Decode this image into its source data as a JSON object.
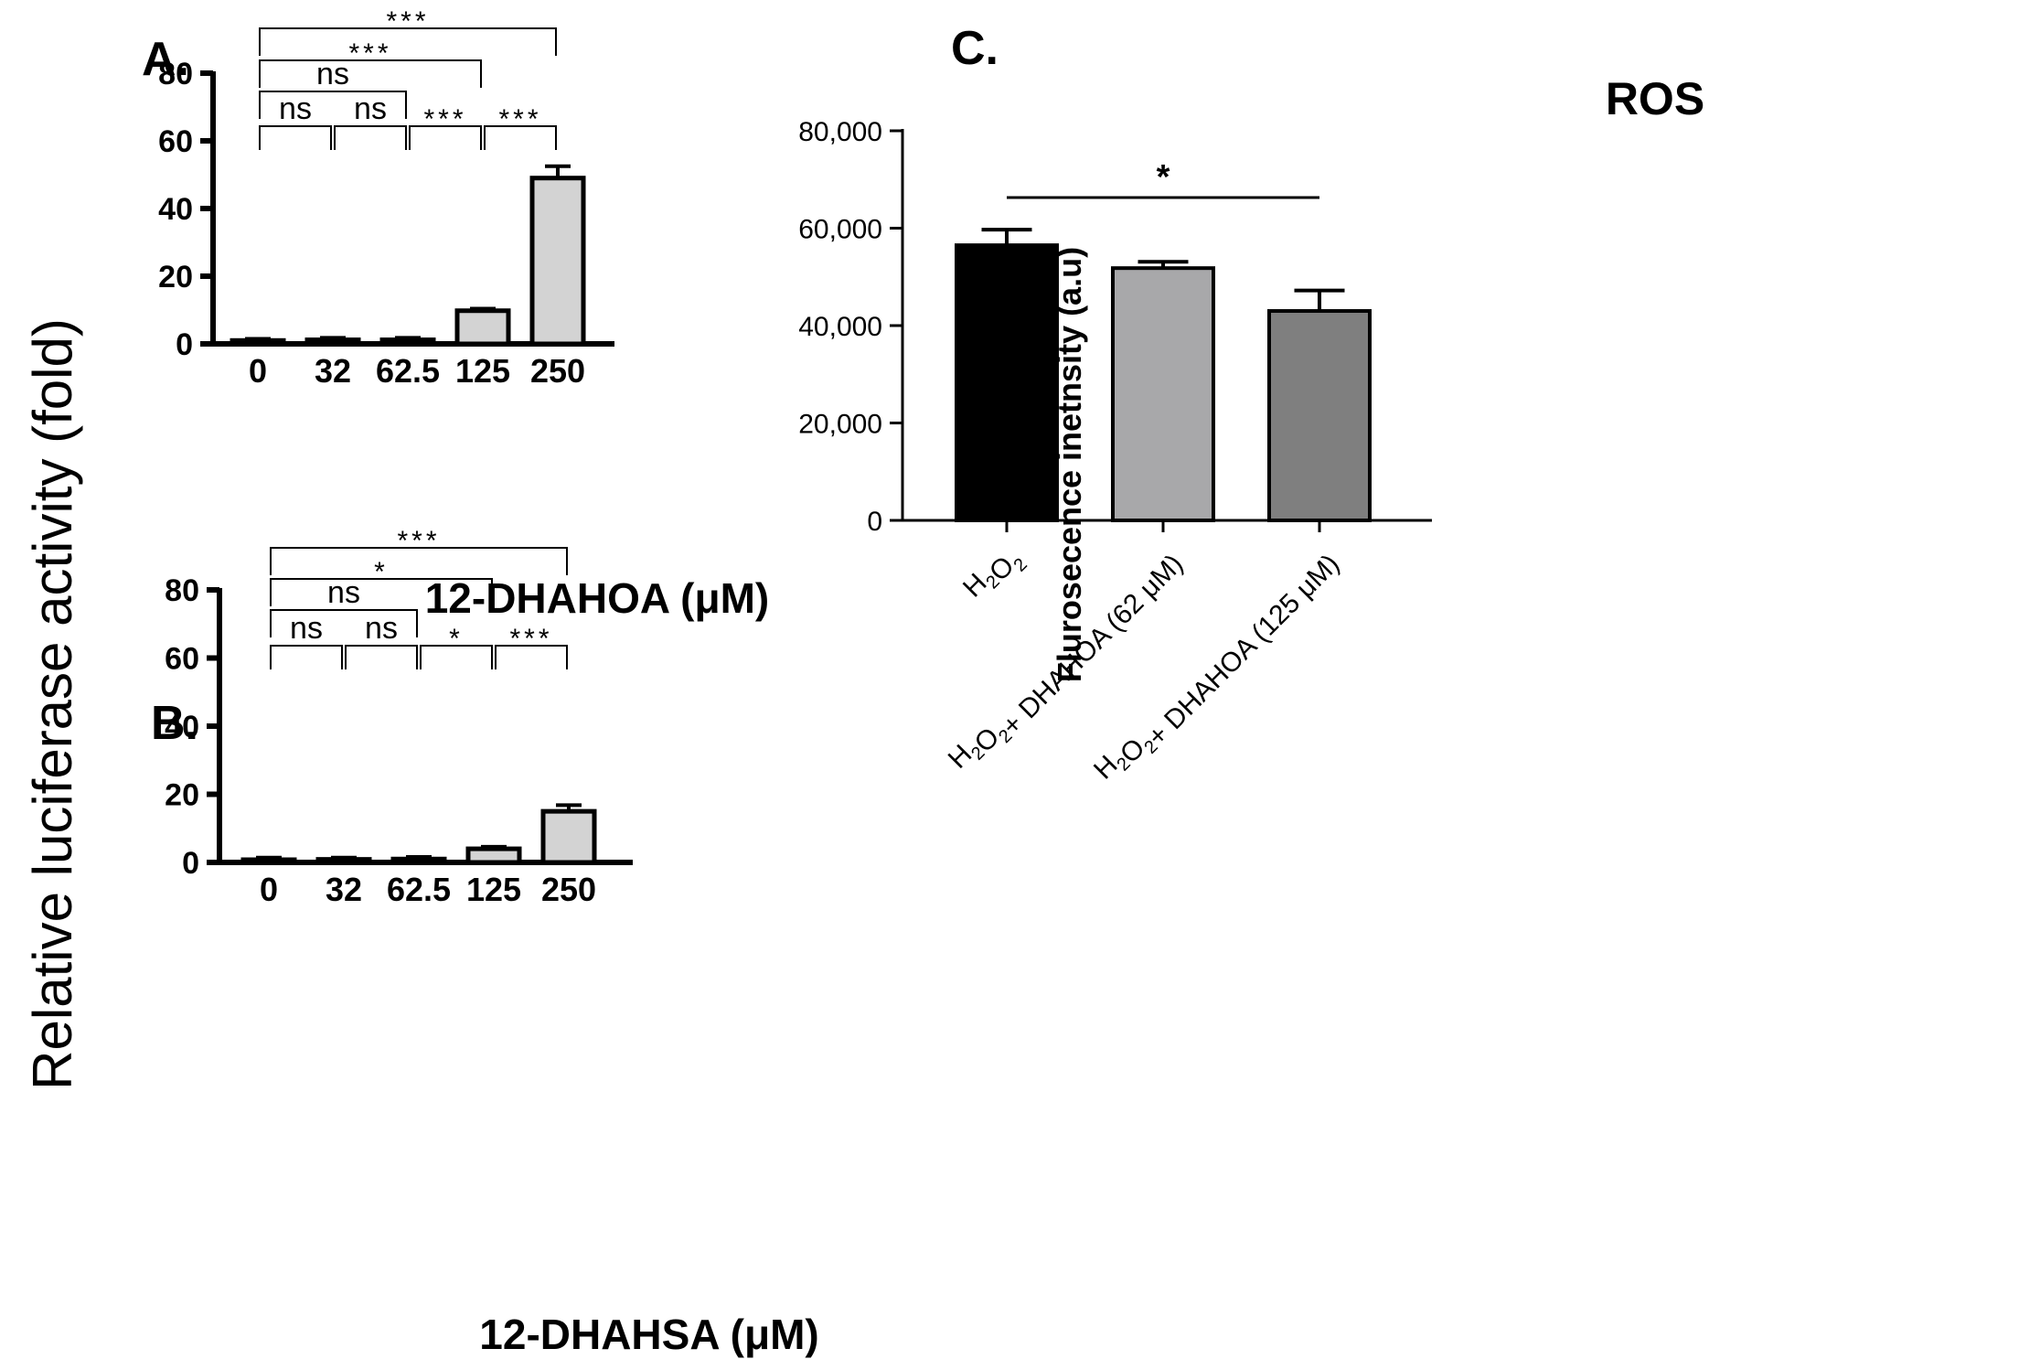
{
  "chart_data": [
    {
      "id": "A",
      "type": "bar",
      "panel_label": "A.",
      "xlabel": "12-DHAHOA (μM)",
      "ylabel": "Relative luciferase activity (fold)",
      "categories": [
        "0",
        "32",
        "62.5",
        "125",
        "250"
      ],
      "values": [
        1,
        1.2,
        1.2,
        9.8,
        49
      ],
      "errors": [
        0.5,
        0.6,
        0.6,
        0.6,
        3.5
      ],
      "ylim": [
        0,
        80
      ],
      "yticks": [
        "0",
        "20",
        "40",
        "60",
        "80"
      ],
      "bar_colors": [
        "#d3d3d3",
        "#d3d3d3",
        "#d3d3d3",
        "#d3d3d3",
        "#d3d3d3"
      ],
      "significance": [
        {
          "from": 0,
          "to": 1,
          "label": "ns"
        },
        {
          "from": 1,
          "to": 2,
          "label": "ns"
        },
        {
          "from": 2,
          "to": 3,
          "label": "***"
        },
        {
          "from": 3,
          "to": 4,
          "label": "***"
        },
        {
          "from": 0,
          "to": 2,
          "label": "ns"
        },
        {
          "from": 0,
          "to": 3,
          "label": "***"
        },
        {
          "from": 0,
          "to": 4,
          "label": "***"
        }
      ]
    },
    {
      "id": "B",
      "type": "bar",
      "panel_label": "B.",
      "xlabel": "12-DHAHSA (μM)",
      "ylabel": "Relative luciferase activity (fold)",
      "categories": [
        "0",
        "32",
        "62.5",
        "125",
        "250"
      ],
      "values": [
        0.8,
        0.9,
        1,
        4,
        15
      ],
      "errors": [
        0.6,
        0.5,
        0.6,
        0.6,
        1.8
      ],
      "ylim": [
        0,
        80
      ],
      "yticks": [
        "0",
        "20",
        "40",
        "60",
        "80"
      ],
      "bar_colors": [
        "#d3d3d3",
        "#d3d3d3",
        "#d3d3d3",
        "#d3d3d3",
        "#d3d3d3"
      ],
      "significance": [
        {
          "from": 0,
          "to": 1,
          "label": "ns"
        },
        {
          "from": 1,
          "to": 2,
          "label": "ns"
        },
        {
          "from": 2,
          "to": 3,
          "label": "*"
        },
        {
          "from": 3,
          "to": 4,
          "label": "***"
        },
        {
          "from": 0,
          "to": 2,
          "label": "ns"
        },
        {
          "from": 0,
          "to": 3,
          "label": "*"
        },
        {
          "from": 0,
          "to": 4,
          "label": "***"
        }
      ]
    },
    {
      "id": "C",
      "type": "bar",
      "panel_label": "C.",
      "title": "ROS",
      "xlabel": "",
      "ylabel": "Flurosecence inetnsity (a.u)",
      "categories": [
        [
          "H",
          {
            "sub": "2"
          },
          "O",
          {
            "sub": "2"
          }
        ],
        [
          "H",
          {
            "sub": "2"
          },
          "O",
          {
            "sub": "2"
          },
          "+ DHAHOA (62 μM)"
        ],
        [
          "H",
          {
            "sub": "2"
          },
          "O",
          {
            "sub": "2"
          },
          "+ DHAHOA (125 μM)"
        ]
      ],
      "values": [
        56500,
        51800,
        43000
      ],
      "errors": [
        3200,
        1300,
        4200
      ],
      "ylim": [
        0,
        80000
      ],
      "yticks": [
        "0",
        "20,000",
        "40,000",
        "60,000",
        "80,000"
      ],
      "bar_colors": [
        "#000000",
        "#a8a8aa",
        "#7f7f7f"
      ],
      "significance": [
        {
          "from": 0,
          "to": 2,
          "label": "*"
        }
      ]
    }
  ]
}
